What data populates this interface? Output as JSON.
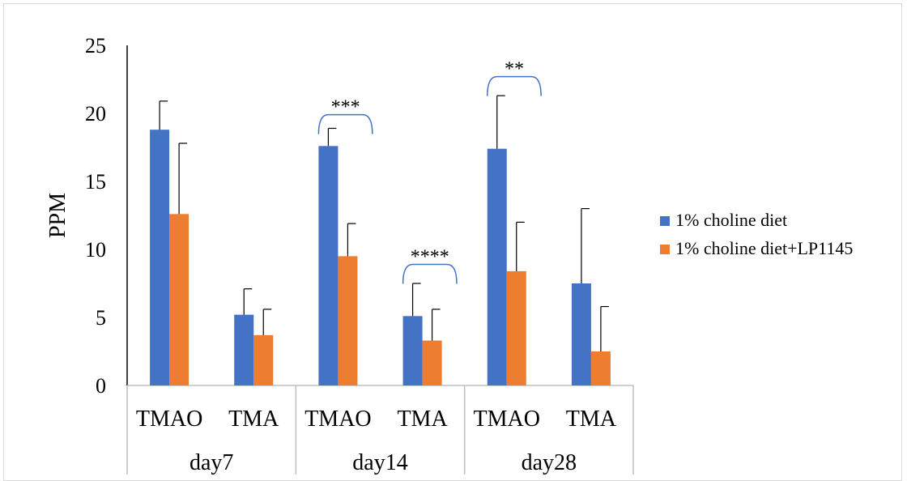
{
  "chart_data": {
    "type": "bar",
    "title": "",
    "xlabel": "",
    "ylabel": "PPM",
    "ylim": [
      0,
      25
    ],
    "yticks": [
      0,
      5,
      10,
      15,
      20,
      25
    ],
    "grid": false,
    "legend_position": "right",
    "categories": [
      "TMAO",
      "TMA",
      "TMAO",
      "TMA",
      "TMAO",
      "TMA"
    ],
    "groups": [
      {
        "label": "day7",
        "span": [
          0,
          1
        ]
      },
      {
        "label": "day14",
        "span": [
          2,
          3
        ]
      },
      {
        "label": "day28",
        "span": [
          4,
          5
        ]
      }
    ],
    "series": [
      {
        "name": "1% choline diet",
        "color": "#4472c4",
        "values": [
          18.8,
          5.2,
          17.6,
          5.1,
          17.4,
          7.5
        ],
        "error": [
          2.1,
          1.9,
          1.3,
          2.4,
          3.9,
          5.5
        ]
      },
      {
        "name": "1% choline diet+LP1145",
        "color": "#ed7d31",
        "values": [
          12.6,
          3.7,
          9.5,
          3.3,
          8.4,
          2.5
        ],
        "error": [
          5.2,
          1.9,
          2.4,
          2.3,
          3.6,
          3.3
        ]
      }
    ],
    "annotations": [
      {
        "text": "***",
        "category": 2,
        "height": 19.9
      },
      {
        "text": "****",
        "category": 3,
        "height": 8.9
      },
      {
        "text": "**",
        "category": 4,
        "height": 22.7
      }
    ]
  }
}
